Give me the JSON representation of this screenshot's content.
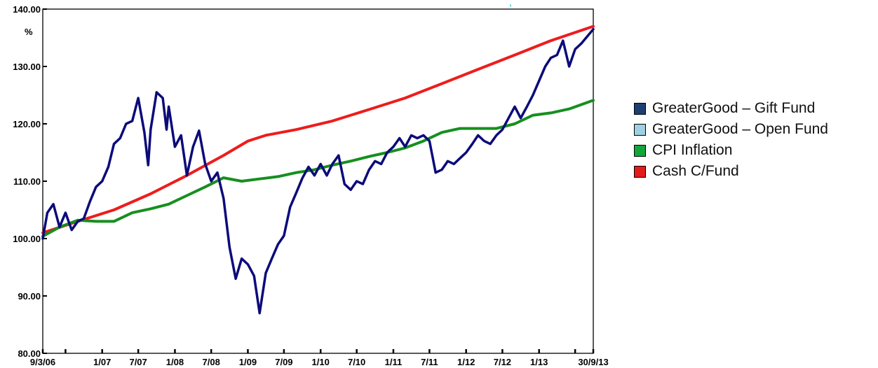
{
  "chart_data": {
    "type": "line",
    "y_unit": "%",
    "ylim": [
      80,
      140
    ],
    "y_ticks": [
      {
        "value": 80,
        "label": "80.00"
      },
      {
        "value": 90,
        "label": "90.00"
      },
      {
        "value": 100,
        "label": "100.00"
      },
      {
        "value": 110,
        "label": "110.00"
      },
      {
        "value": 120,
        "label": "120.00"
      },
      {
        "value": 130,
        "label": "130.00"
      },
      {
        "value": 140,
        "label": "140.00"
      }
    ],
    "xlim": [
      "2006-03-09",
      "2013-09-30"
    ],
    "x_ticks": [
      {
        "date": "2006-03-09",
        "label": "9/3/06"
      },
      {
        "date": "2006-07-01",
        "label": ""
      },
      {
        "date": "2007-01-01",
        "label": "1/07"
      },
      {
        "date": "2007-07-01",
        "label": "7/07"
      },
      {
        "date": "2008-01-01",
        "label": "1/08"
      },
      {
        "date": "2008-07-01",
        "label": "7/08"
      },
      {
        "date": "2009-01-01",
        "label": "1/09"
      },
      {
        "date": "2009-07-01",
        "label": "7/09"
      },
      {
        "date": "2010-01-01",
        "label": "1/10"
      },
      {
        "date": "2010-07-01",
        "label": "7/10"
      },
      {
        "date": "2011-01-01",
        "label": "1/11"
      },
      {
        "date": "2011-07-01",
        "label": "7/11"
      },
      {
        "date": "2012-01-01",
        "label": "1/12"
      },
      {
        "date": "2012-07-01",
        "label": "7/12"
      },
      {
        "date": "2013-01-01",
        "label": "1/13"
      },
      {
        "date": "2013-07-01",
        "label": ""
      },
      {
        "date": "2013-09-30",
        "label": "30/9/13"
      }
    ],
    "grid": false,
    "legend_position": "right",
    "series": [
      {
        "name": "GreaterGood – Gift Fund",
        "color": "#0b0b7a",
        "legend_color": "#1f3f73",
        "points": [
          [
            "2006-03-09",
            100.0
          ],
          [
            "2006-04-01",
            104.5
          ],
          [
            "2006-05-01",
            106.0
          ],
          [
            "2006-06-01",
            102.0
          ],
          [
            "2006-07-01",
            104.5
          ],
          [
            "2006-08-01",
            101.5
          ],
          [
            "2006-09-01",
            103.0
          ],
          [
            "2006-10-01",
            103.5
          ],
          [
            "2006-11-01",
            106.5
          ],
          [
            "2006-12-01",
            109.0
          ],
          [
            "2007-01-01",
            110.0
          ],
          [
            "2007-02-01",
            112.5
          ],
          [
            "2007-03-01",
            116.5
          ],
          [
            "2007-04-01",
            117.5
          ],
          [
            "2007-05-01",
            120.0
          ],
          [
            "2007-06-01",
            120.5
          ],
          [
            "2007-07-01",
            124.5
          ],
          [
            "2007-08-01",
            118.5
          ],
          [
            "2007-08-20",
            112.8
          ],
          [
            "2007-09-01",
            119.0
          ],
          [
            "2007-10-01",
            125.5
          ],
          [
            "2007-11-01",
            124.5
          ],
          [
            "2007-11-20",
            119.0
          ],
          [
            "2007-12-01",
            123.0
          ],
          [
            "2008-01-01",
            116.0
          ],
          [
            "2008-02-01",
            118.0
          ],
          [
            "2008-03-01",
            111.0
          ],
          [
            "2008-04-01",
            116.0
          ],
          [
            "2008-05-01",
            118.8
          ],
          [
            "2008-06-01",
            113.0
          ],
          [
            "2008-07-01",
            110.0
          ],
          [
            "2008-08-01",
            111.5
          ],
          [
            "2008-09-01",
            107.0
          ],
          [
            "2008-10-01",
            98.5
          ],
          [
            "2008-11-01",
            93.0
          ],
          [
            "2008-12-01",
            96.5
          ],
          [
            "2009-01-01",
            95.5
          ],
          [
            "2009-02-01",
            93.5
          ],
          [
            "2009-03-01",
            87.0
          ],
          [
            "2009-04-01",
            94.0
          ],
          [
            "2009-05-01",
            96.5
          ],
          [
            "2009-06-01",
            99.0
          ],
          [
            "2009-07-01",
            100.5
          ],
          [
            "2009-08-01",
            105.5
          ],
          [
            "2009-09-01",
            108.0
          ],
          [
            "2009-10-01",
            110.5
          ],
          [
            "2009-11-01",
            112.5
          ],
          [
            "2009-12-01",
            111.0
          ],
          [
            "2010-01-01",
            113.0
          ],
          [
            "2010-02-01",
            111.0
          ],
          [
            "2010-03-01",
            113.0
          ],
          [
            "2010-04-01",
            114.5
          ],
          [
            "2010-05-01",
            109.5
          ],
          [
            "2010-06-01",
            108.5
          ],
          [
            "2010-07-01",
            110.0
          ],
          [
            "2010-08-01",
            109.5
          ],
          [
            "2010-09-01",
            112.0
          ],
          [
            "2010-10-01",
            113.5
          ],
          [
            "2010-11-01",
            113.0
          ],
          [
            "2010-12-01",
            115.0
          ],
          [
            "2011-01-01",
            116.0
          ],
          [
            "2011-02-01",
            117.5
          ],
          [
            "2011-03-01",
            116.0
          ],
          [
            "2011-04-01",
            118.0
          ],
          [
            "2011-05-01",
            117.5
          ],
          [
            "2011-06-01",
            118.0
          ],
          [
            "2011-07-01",
            117.0
          ],
          [
            "2011-08-01",
            111.5
          ],
          [
            "2011-09-01",
            112.0
          ],
          [
            "2011-10-01",
            113.5
          ],
          [
            "2011-11-01",
            113.0
          ],
          [
            "2011-12-01",
            114.0
          ],
          [
            "2012-01-01",
            115.0
          ],
          [
            "2012-02-01",
            116.5
          ],
          [
            "2012-03-01",
            118.0
          ],
          [
            "2012-04-01",
            117.0
          ],
          [
            "2012-05-01",
            116.5
          ],
          [
            "2012-06-01",
            118.0
          ],
          [
            "2012-07-01",
            119.0
          ],
          [
            "2012-08-01",
            121.0
          ],
          [
            "2012-09-01",
            123.0
          ],
          [
            "2012-10-01",
            121.0
          ],
          [
            "2012-11-01",
            123.0
          ],
          [
            "2012-12-01",
            125.0
          ],
          [
            "2013-01-01",
            127.5
          ],
          [
            "2013-02-01",
            130.0
          ],
          [
            "2013-03-01",
            131.5
          ],
          [
            "2013-04-01",
            132.0
          ],
          [
            "2013-05-01",
            134.5
          ],
          [
            "2013-06-01",
            130.0
          ],
          [
            "2013-07-01",
            133.0
          ],
          [
            "2013-08-01",
            134.0
          ],
          [
            "2013-09-30",
            136.5
          ]
        ]
      },
      {
        "name": "GreaterGood – Open Fund",
        "color": "#9ecfe3",
        "legend_color": "#9ecfe3",
        "points": []
      },
      {
        "name": "CPI Inflation",
        "color": "#168f1e",
        "legend_color": "#12a63b",
        "points": [
          [
            "2006-03-09",
            100.4
          ],
          [
            "2006-06-01",
            102.0
          ],
          [
            "2006-09-01",
            103.2
          ],
          [
            "2006-12-01",
            103.0
          ],
          [
            "2007-03-01",
            103.0
          ],
          [
            "2007-06-01",
            104.5
          ],
          [
            "2007-09-01",
            105.2
          ],
          [
            "2007-12-01",
            106.0
          ],
          [
            "2008-03-01",
            107.5
          ],
          [
            "2008-06-01",
            109.0
          ],
          [
            "2008-09-01",
            110.6
          ],
          [
            "2008-12-01",
            110.0
          ],
          [
            "2009-03-01",
            110.4
          ],
          [
            "2009-06-01",
            110.8
          ],
          [
            "2009-09-01",
            111.5
          ],
          [
            "2009-12-01",
            112.0
          ],
          [
            "2010-03-01",
            112.8
          ],
          [
            "2010-06-01",
            113.5
          ],
          [
            "2010-09-01",
            114.3
          ],
          [
            "2010-12-01",
            115.0
          ],
          [
            "2011-03-01",
            115.8
          ],
          [
            "2011-06-01",
            117.0
          ],
          [
            "2011-09-01",
            118.5
          ],
          [
            "2011-12-01",
            119.2
          ],
          [
            "2012-03-01",
            119.2
          ],
          [
            "2012-06-01",
            119.2
          ],
          [
            "2012-09-01",
            120.0
          ],
          [
            "2012-12-01",
            121.5
          ],
          [
            "2013-03-01",
            121.9
          ],
          [
            "2013-06-01",
            122.6
          ],
          [
            "2013-09-30",
            124.1
          ]
        ]
      },
      {
        "name": "Cash C/Fund",
        "color": "#ee1c1c",
        "legend_color": "#e31b1b",
        "points": [
          [
            "2006-03-09",
            101.0
          ],
          [
            "2006-09-01",
            103.0
          ],
          [
            "2007-03-01",
            105.0
          ],
          [
            "2007-09-01",
            107.8
          ],
          [
            "2008-03-01",
            111.0
          ],
          [
            "2008-09-01",
            114.5
          ],
          [
            "2009-01-01",
            117.0
          ],
          [
            "2009-04-01",
            118.0
          ],
          [
            "2009-09-01",
            119.0
          ],
          [
            "2010-03-01",
            120.5
          ],
          [
            "2010-09-01",
            122.5
          ],
          [
            "2011-03-01",
            124.5
          ],
          [
            "2011-09-01",
            127.0
          ],
          [
            "2012-03-01",
            129.5
          ],
          [
            "2012-09-01",
            132.0
          ],
          [
            "2013-03-01",
            134.5
          ],
          [
            "2013-09-30",
            137.0
          ]
        ]
      }
    ]
  }
}
